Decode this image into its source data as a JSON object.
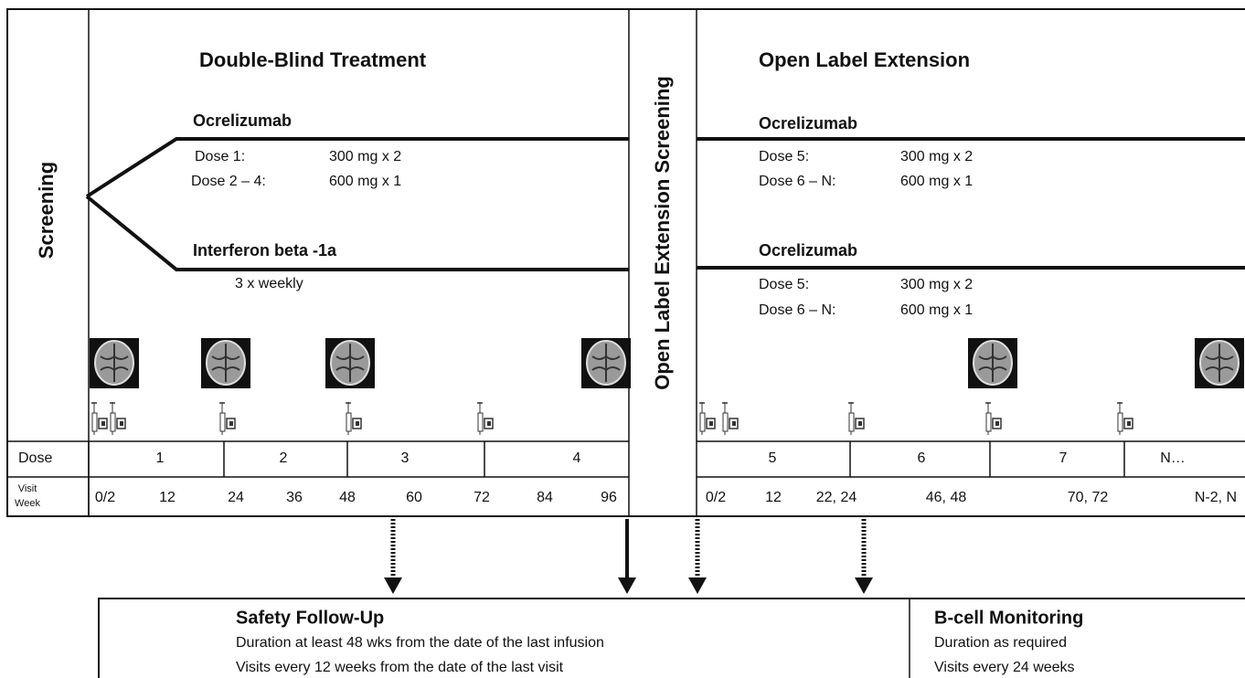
{
  "screening": "Screening",
  "double_blind": {
    "title": "Double-Blind Treatment",
    "arms": [
      {
        "name": "Ocrelizumab",
        "doses": [
          {
            "label": "Dose 1:",
            "amount": "300 mg x 2"
          },
          {
            "label": "Dose 2 – 4:",
            "amount": "600 mg x 1"
          }
        ]
      },
      {
        "name": "Interferon beta -1a",
        "schedule": "3 x weekly"
      }
    ],
    "doses": [
      "1",
      "2",
      "3",
      "4"
    ],
    "visit_weeks": [
      "0/2",
      "12",
      "24",
      "36",
      "48",
      "60",
      "72",
      "84",
      "96"
    ]
  },
  "ole_screening": "Open Label Extension Screening",
  "ole": {
    "title": "Open Label Extension",
    "arms": [
      {
        "name": "Ocrelizumab",
        "doses": [
          {
            "label": "Dose 5:",
            "amount": "300 mg  x 2"
          },
          {
            "label": "Dose 6 – N:",
            "amount": "600 mg  x 1"
          }
        ]
      },
      {
        "name": "Ocrelizumab",
        "doses": [
          {
            "label": "Dose 5:",
            "amount": "300 mg  x 2"
          },
          {
            "label": "Dose 6 – N:",
            "amount": "600 mg x 1"
          }
        ]
      }
    ],
    "doses": [
      "5",
      "6",
      "7",
      "N…"
    ],
    "visit_weeks": [
      "0/2",
      "12",
      "22, 24",
      "46, 48",
      "70, 72",
      "N-2, N"
    ]
  },
  "row_labels": {
    "dose": "Dose",
    "visit_week": [
      "Visit",
      "Week"
    ]
  },
  "safety": {
    "title": "Safety Follow-Up",
    "lines": [
      "Duration at least 48 wks from the date of the last infusion",
      "Visits every 12 weeks from the date of the last visit"
    ]
  },
  "bcell": {
    "title": "B-cell Monitoring",
    "lines": [
      "Duration as required",
      "Visits every 24 weeks"
    ]
  }
}
